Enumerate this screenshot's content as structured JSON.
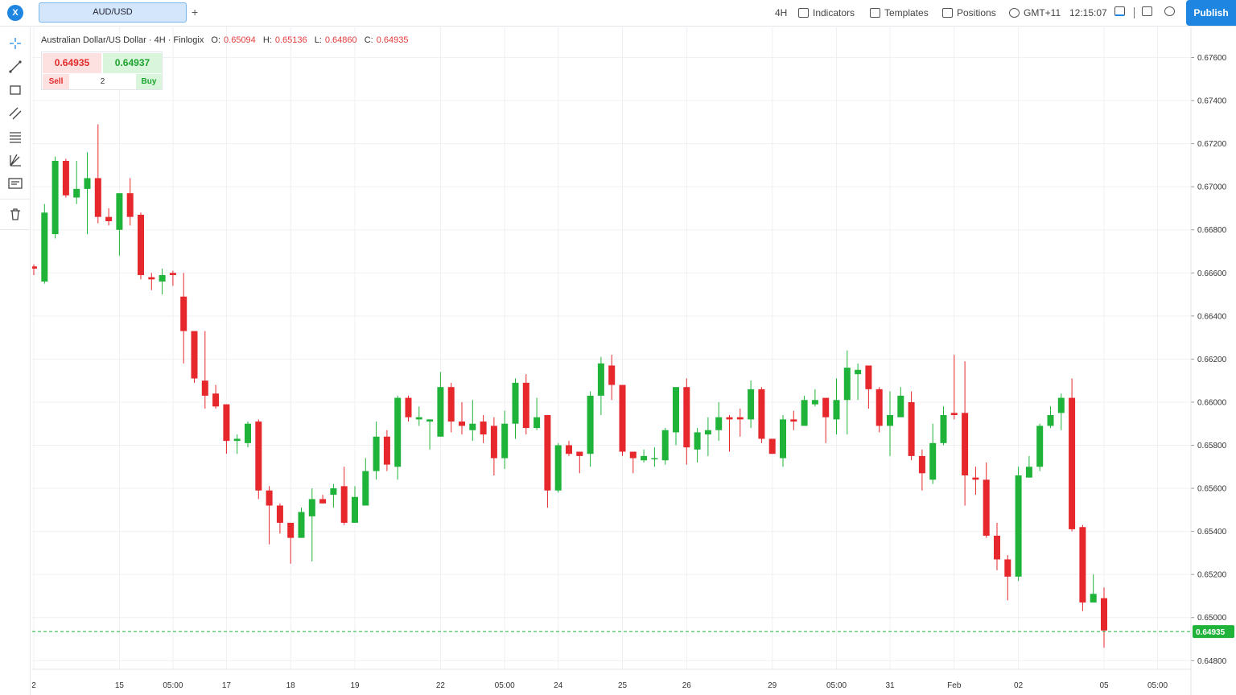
{
  "topbar": {
    "symbol_tab": "AUD/USD",
    "add_tab": "+",
    "timeframe": "4H",
    "indicators": "Indicators",
    "templates": "Templates",
    "positions": "Positions",
    "timezone": "GMT+11",
    "clock": "12:15:07",
    "publish": "Publish"
  },
  "legend": {
    "title": "Australian Dollar/US Dollar · 4H · Finlogix",
    "o_label": "O:",
    "o_value": "0.65094",
    "h_label": "H:",
    "h_value": "0.65136",
    "l_label": "L:",
    "l_value": "0.64860",
    "c_label": "C:",
    "c_value": "0.64935"
  },
  "trade_panel": {
    "sell_price": "0.64935",
    "buy_price": "0.64937",
    "sell_label": "Sell",
    "buy_label": "Buy",
    "quantity": "2"
  },
  "lefttools": [
    "crosshair-icon",
    "trendline-icon",
    "rectangle-icon",
    "channel-icon",
    "fib-levels-icon",
    "pitchfork-icon",
    "text-note-icon",
    "trash-icon"
  ],
  "colors": {
    "up": "#1fb33a",
    "down": "#e6282c",
    "accent": "#1e86e0",
    "last_price": "#1fb33a"
  },
  "chart_data": {
    "type": "candlestick",
    "symbol": "AUD/USD",
    "timeframe": "4H",
    "y_ticks": [
      "0.67600",
      "0.67400",
      "0.67200",
      "0.67000",
      "0.66800",
      "0.66600",
      "0.66400",
      "0.66200",
      "0.66000",
      "0.65800",
      "0.65600",
      "0.65400",
      "0.65200",
      "0.65000",
      "0.64800"
    ],
    "y_range": [
      0.6476,
      0.6774
    ],
    "x_ticks": [
      "2",
      "15",
      "05:00",
      "17",
      "18",
      "19",
      "22",
      "05:00",
      "24",
      "25",
      "26",
      "29",
      "05:00",
      "31",
      "Feb",
      "02",
      "05",
      "05:00"
    ],
    "last_price": "0.64935",
    "last_price_value": 0.64935,
    "candles": [
      [
        0.6663,
        0.6662,
        0.6664,
        0.6659
      ],
      [
        0.6656,
        0.6688,
        0.6692,
        0.6655
      ],
      [
        0.6678,
        0.6712,
        0.6714,
        0.6676
      ],
      [
        0.6712,
        0.6696,
        0.6713,
        0.6695
      ],
      [
        0.6695,
        0.6699,
        0.6712,
        0.6692
      ],
      [
        0.6699,
        0.6704,
        0.6716,
        0.6678
      ],
      [
        0.6704,
        0.6686,
        0.6729,
        0.6683
      ],
      [
        0.6686,
        0.6684,
        0.669,
        0.6682
      ],
      [
        0.668,
        0.6697,
        0.6697,
        0.6668
      ],
      [
        0.6697,
        0.6686,
        0.6704,
        0.6682
      ],
      [
        0.6687,
        0.6659,
        0.6688,
        0.6657
      ],
      [
        0.6658,
        0.6657,
        0.666,
        0.6652
      ],
      [
        0.6656,
        0.6659,
        0.6662,
        0.665
      ],
      [
        0.666,
        0.6659,
        0.6661,
        0.6654
      ],
      [
        0.6649,
        0.6633,
        0.666,
        0.6618
      ],
      [
        0.6633,
        0.6611,
        0.6633,
        0.6609
      ],
      [
        0.661,
        0.6603,
        0.6633,
        0.6597
      ],
      [
        0.6604,
        0.6598,
        0.6608,
        0.6597
      ],
      [
        0.6599,
        0.6582,
        0.6599,
        0.6576
      ],
      [
        0.6582,
        0.6583,
        0.6585,
        0.6576
      ],
      [
        0.6581,
        0.659,
        0.6591,
        0.6579
      ],
      [
        0.6591,
        0.6559,
        0.6592,
        0.6555
      ],
      [
        0.6559,
        0.6552,
        0.6561,
        0.6534
      ],
      [
        0.6552,
        0.6544,
        0.6553,
        0.6539
      ],
      [
        0.6544,
        0.6537,
        0.6538,
        0.6525
      ],
      [
        0.6537,
        0.6549,
        0.6551,
        0.6537
      ],
      [
        0.6547,
        0.6555,
        0.656,
        0.6526
      ],
      [
        0.6555,
        0.6553,
        0.6557,
        0.6553
      ],
      [
        0.6557,
        0.656,
        0.6562,
        0.6551
      ],
      [
        0.6561,
        0.6544,
        0.657,
        0.6543
      ],
      [
        0.6544,
        0.6556,
        0.6561,
        0.6544
      ],
      [
        0.6552,
        0.6568,
        0.6574,
        0.6553
      ],
      [
        0.6568,
        0.6584,
        0.6591,
        0.6564
      ],
      [
        0.6584,
        0.6571,
        0.6587,
        0.6568
      ],
      [
        0.657,
        0.6602,
        0.6603,
        0.6564
      ],
      [
        0.6602,
        0.6593,
        0.6603,
        0.6591
      ],
      [
        0.6592,
        0.6593,
        0.6598,
        0.6589
      ],
      [
        0.6591,
        0.6592,
        0.6592,
        0.6578
      ],
      [
        0.6584,
        0.6607,
        0.6614,
        0.6584
      ],
      [
        0.6607,
        0.6591,
        0.6609,
        0.6586
      ],
      [
        0.6591,
        0.6589,
        0.66,
        0.6585
      ],
      [
        0.6587,
        0.659,
        0.6601,
        0.6582
      ],
      [
        0.6591,
        0.6585,
        0.6594,
        0.6581
      ],
      [
        0.6589,
        0.6574,
        0.6593,
        0.6566
      ],
      [
        0.6574,
        0.659,
        0.6596,
        0.6569
      ],
      [
        0.659,
        0.6609,
        0.6611,
        0.6583
      ],
      [
        0.6609,
        0.6588,
        0.6613,
        0.6585
      ],
      [
        0.6588,
        0.6593,
        0.6602,
        0.6587
      ],
      [
        0.6594,
        0.6559,
        0.6594,
        0.6551
      ],
      [
        0.6559,
        0.658,
        0.6581,
        0.6558
      ],
      [
        0.658,
        0.6576,
        0.6582,
        0.6575
      ],
      [
        0.6577,
        0.6575,
        0.6577,
        0.6567
      ],
      [
        0.6576,
        0.6603,
        0.6605,
        0.657
      ],
      [
        0.6603,
        0.6618,
        0.6621,
        0.6594
      ],
      [
        0.6617,
        0.6608,
        0.6622,
        0.6601
      ],
      [
        0.6608,
        0.6577,
        0.6608,
        0.6575
      ],
      [
        0.6577,
        0.6574,
        0.6577,
        0.6567
      ],
      [
        0.6573,
        0.6575,
        0.6578,
        0.6572
      ],
      [
        0.6574,
        0.6574,
        0.6579,
        0.657
      ],
      [
        0.6573,
        0.6587,
        0.6588,
        0.6571
      ],
      [
        0.6586,
        0.6607,
        0.6607,
        0.658
      ],
      [
        0.6607,
        0.6579,
        0.6611,
        0.6571
      ],
      [
        0.6578,
        0.6586,
        0.6588,
        0.6572
      ],
      [
        0.6585,
        0.6587,
        0.6593,
        0.6575
      ],
      [
        0.6587,
        0.6593,
        0.66,
        0.6582
      ],
      [
        0.6593,
        0.6592,
        0.6594,
        0.6577
      ],
      [
        0.6593,
        0.6592,
        0.6597,
        0.6584
      ],
      [
        0.6592,
        0.6606,
        0.661,
        0.6588
      ],
      [
        0.6606,
        0.6583,
        0.6607,
        0.6581
      ],
      [
        0.6583,
        0.6576,
        0.6582,
        0.6576
      ],
      [
        0.6574,
        0.6592,
        0.6594,
        0.657
      ],
      [
        0.6592,
        0.6591,
        0.6596,
        0.6587
      ],
      [
        0.6589,
        0.6601,
        0.6603,
        0.6591
      ],
      [
        0.6599,
        0.6601,
        0.6606,
        0.6598
      ],
      [
        0.6602,
        0.6593,
        0.6601,
        0.6581
      ],
      [
        0.6592,
        0.6601,
        0.6611,
        0.6585
      ],
      [
        0.6601,
        0.6616,
        0.6624,
        0.6585
      ],
      [
        0.6613,
        0.6615,
        0.6618,
        0.6601
      ],
      [
        0.6617,
        0.6606,
        0.6616,
        0.6597
      ],
      [
        0.6606,
        0.6589,
        0.6607,
        0.6586
      ],
      [
        0.6589,
        0.6594,
        0.6605,
        0.6575
      ],
      [
        0.6593,
        0.6603,
        0.6607,
        0.6594
      ],
      [
        0.66,
        0.6575,
        0.6605,
        0.6573
      ],
      [
        0.6575,
        0.6567,
        0.6578,
        0.6559
      ],
      [
        0.6564,
        0.6581,
        0.659,
        0.6562
      ],
      [
        0.6581,
        0.6594,
        0.6598,
        0.658
      ],
      [
        0.6595,
        0.6594,
        0.6622,
        0.6592
      ],
      [
        0.6595,
        0.6566,
        0.6619,
        0.6552
      ],
      [
        0.6565,
        0.6564,
        0.657,
        0.6557
      ],
      [
        0.6564,
        0.6538,
        0.6572,
        0.6537
      ],
      [
        0.6538,
        0.6527,
        0.6544,
        0.6522
      ],
      [
        0.6527,
        0.6519,
        0.6529,
        0.6508
      ],
      [
        0.6519,
        0.6566,
        0.657,
        0.6517
      ],
      [
        0.6565,
        0.657,
        0.6575,
        0.6565
      ],
      [
        0.657,
        0.6589,
        0.659,
        0.6568
      ],
      [
        0.6589,
        0.6594,
        0.6598,
        0.6588
      ],
      [
        0.6595,
        0.6602,
        0.6604,
        0.6587
      ],
      [
        0.6602,
        0.6541,
        0.6611,
        0.654
      ],
      [
        0.6542,
        0.6507,
        0.6543,
        0.6503
      ],
      [
        0.6507,
        0.6511,
        0.652,
        0.6508
      ],
      [
        0.6509,
        0.6494,
        0.6514,
        0.6486
      ]
    ]
  }
}
